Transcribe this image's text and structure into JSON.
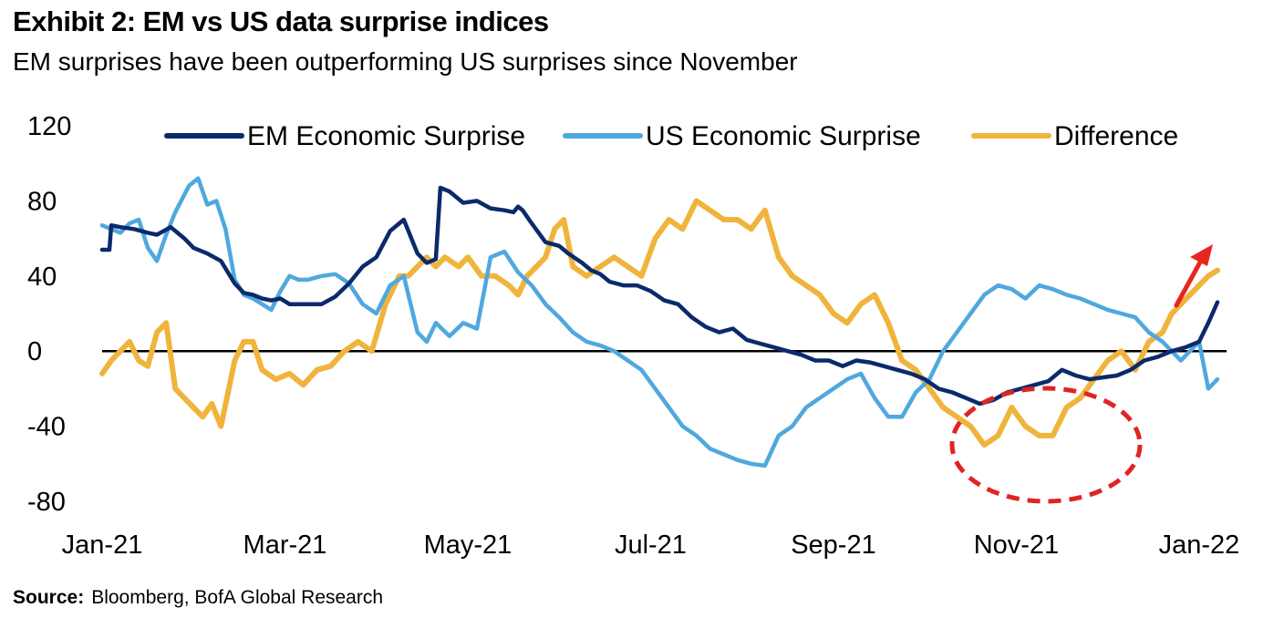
{
  "header": {
    "title": "Exhibit 2: EM vs US data surprise indices",
    "subtitle": "EM surprises have been outperforming US surprises since November"
  },
  "footer": {
    "source_label": "Source:",
    "source_text": "Bloomberg, BofA Global Research"
  },
  "chart_data": {
    "type": "line",
    "title": "Exhibit 2: EM vs US data surprise indices",
    "xlabel": "",
    "ylabel": "",
    "ylim": [
      -80,
      120
    ],
    "xlim": [
      0,
      12.3
    ],
    "yticks": [
      -80,
      -40,
      0,
      40,
      80,
      120
    ],
    "xtick_labels": [
      "Jan-21",
      "Mar-21",
      "May-21",
      "Jul-21",
      "Sep-21",
      "Nov-21",
      "Jan-22"
    ],
    "xtick_positions": [
      0,
      2,
      4,
      6,
      8,
      10,
      12
    ],
    "legend_position": "top",
    "zero_line": true,
    "series": [
      {
        "name": "EM Economic Surprise",
        "color": "#0b2a6b",
        "x": [
          0,
          0.08,
          0.1,
          0.2,
          0.35,
          0.5,
          0.6,
          0.75,
          0.9,
          1.0,
          1.15,
          1.3,
          1.45,
          1.55,
          1.65,
          1.75,
          1.85,
          1.95,
          2.05,
          2.2,
          2.4,
          2.55,
          2.7,
          2.85,
          3.0,
          3.15,
          3.3,
          3.45,
          3.55,
          3.65,
          3.7,
          3.8,
          3.95,
          4.1,
          4.25,
          4.4,
          4.5,
          4.55,
          4.6,
          4.7,
          4.85,
          5.0,
          5.1,
          5.25,
          5.35,
          5.45,
          5.55,
          5.7,
          5.85,
          6.0,
          6.15,
          6.3,
          6.45,
          6.6,
          6.75,
          6.9,
          7.05,
          7.2,
          7.35,
          7.5,
          7.65,
          7.8,
          7.95,
          8.1,
          8.25,
          8.4,
          8.55,
          8.7,
          8.85,
          9.0,
          9.15,
          9.3,
          9.45,
          9.6,
          9.75,
          9.9,
          10.05,
          10.2,
          10.35,
          10.5,
          10.65,
          10.8,
          10.95,
          11.1,
          11.25,
          11.4,
          11.55,
          11.7,
          11.85,
          12.0,
          12.1,
          12.2
        ],
        "values": [
          54,
          54,
          67,
          66,
          65,
          63,
          62,
          66,
          60,
          55,
          52,
          48,
          36,
          31,
          30,
          28,
          27,
          28,
          25,
          25,
          25,
          29,
          36,
          45,
          50,
          64,
          70,
          52,
          47,
          49,
          87,
          85,
          79,
          80,
          76,
          75,
          74,
          77,
          75,
          68,
          58,
          56,
          52,
          47,
          43,
          41,
          37,
          35,
          35,
          32,
          27,
          25,
          18,
          13,
          10,
          12,
          6,
          4,
          2,
          0,
          -2,
          -5,
          -5,
          -8,
          -5,
          -6,
          -8,
          -10,
          -12,
          -15,
          -20,
          -22,
          -25,
          -28,
          -26,
          -22,
          -20,
          -18,
          -16,
          -10,
          -13,
          -15,
          -14,
          -13,
          -10,
          -5,
          -3,
          0,
          2,
          5,
          15,
          26
        ]
      },
      {
        "name": "US Economic Surprise",
        "color": "#4fa8de",
        "x": [
          0,
          0.1,
          0.2,
          0.3,
          0.4,
          0.5,
          0.6,
          0.7,
          0.8,
          0.95,
          1.05,
          1.15,
          1.25,
          1.35,
          1.45,
          1.55,
          1.65,
          1.75,
          1.85,
          1.95,
          2.05,
          2.15,
          2.25,
          2.4,
          2.55,
          2.7,
          2.85,
          3.0,
          3.15,
          3.3,
          3.45,
          3.55,
          3.65,
          3.8,
          3.95,
          4.1,
          4.25,
          4.4,
          4.55,
          4.7,
          4.85,
          5.0,
          5.15,
          5.3,
          5.45,
          5.6,
          5.75,
          5.9,
          6.05,
          6.2,
          6.35,
          6.5,
          6.65,
          6.8,
          6.95,
          7.1,
          7.25,
          7.4,
          7.55,
          7.7,
          7.85,
          8.0,
          8.15,
          8.3,
          8.45,
          8.6,
          8.75,
          8.9,
          9.05,
          9.2,
          9.35,
          9.5,
          9.65,
          9.8,
          9.95,
          10.1,
          10.25,
          10.4,
          10.55,
          10.7,
          10.85,
          11.0,
          11.15,
          11.3,
          11.45,
          11.6,
          11.7,
          11.8,
          11.9,
          12.0,
          12.1,
          12.2
        ],
        "values": [
          67,
          65,
          63,
          68,
          70,
          55,
          48,
          62,
          74,
          88,
          92,
          78,
          80,
          65,
          38,
          30,
          28,
          25,
          22,
          32,
          40,
          38,
          38,
          40,
          41,
          36,
          25,
          20,
          35,
          40,
          10,
          5,
          15,
          8,
          15,
          12,
          50,
          53,
          42,
          35,
          25,
          18,
          10,
          5,
          3,
          0,
          -5,
          -10,
          -20,
          -30,
          -40,
          -45,
          -52,
          -55,
          -58,
          -60,
          -61,
          -45,
          -40,
          -30,
          -25,
          -20,
          -15,
          -12,
          -25,
          -35,
          -35,
          -22,
          -15,
          0,
          10,
          20,
          30,
          35,
          33,
          28,
          35,
          33,
          30,
          28,
          25,
          22,
          20,
          18,
          10,
          5,
          0,
          -5,
          0,
          5,
          -20,
          -15
        ]
      },
      {
        "name": "Difference",
        "color": "#f0b43c",
        "x": [
          0,
          0.1,
          0.2,
          0.3,
          0.4,
          0.5,
          0.6,
          0.7,
          0.8,
          0.9,
          1.0,
          1.1,
          1.2,
          1.3,
          1.45,
          1.55,
          1.65,
          1.75,
          1.9,
          2.05,
          2.2,
          2.35,
          2.5,
          2.65,
          2.8,
          2.95,
          3.1,
          3.25,
          3.35,
          3.45,
          3.55,
          3.65,
          3.75,
          3.9,
          4.0,
          4.15,
          4.3,
          4.45,
          4.55,
          4.65,
          4.75,
          4.85,
          4.95,
          5.05,
          5.15,
          5.3,
          5.45,
          5.6,
          5.75,
          5.9,
          6.05,
          6.2,
          6.35,
          6.5,
          6.65,
          6.8,
          6.95,
          7.1,
          7.25,
          7.4,
          7.55,
          7.7,
          7.85,
          8.0,
          8.15,
          8.3,
          8.45,
          8.6,
          8.75,
          8.9,
          9.05,
          9.2,
          9.35,
          9.5,
          9.65,
          9.8,
          9.95,
          10.1,
          10.25,
          10.4,
          10.55,
          10.7,
          10.85,
          11.0,
          11.15,
          11.3,
          11.45,
          11.6,
          11.7,
          11.8,
          11.9,
          12.0,
          12.1,
          12.2
        ],
        "values": [
          -12,
          -5,
          0,
          5,
          -5,
          -8,
          10,
          15,
          -20,
          -25,
          -30,
          -35,
          -28,
          -40,
          -5,
          5,
          5,
          -10,
          -15,
          -12,
          -18,
          -10,
          -8,
          0,
          5,
          0,
          25,
          40,
          40,
          45,
          50,
          45,
          50,
          45,
          50,
          40,
          40,
          35,
          30,
          40,
          45,
          50,
          65,
          70,
          45,
          40,
          45,
          50,
          45,
          40,
          60,
          70,
          65,
          80,
          75,
          70,
          70,
          65,
          75,
          50,
          40,
          35,
          30,
          20,
          15,
          25,
          30,
          15,
          -5,
          -10,
          -20,
          -30,
          -35,
          -40,
          -50,
          -45,
          -30,
          -40,
          -45,
          -45,
          -30,
          -25,
          -15,
          -5,
          0,
          -10,
          5,
          10,
          20,
          25,
          30,
          35,
          40,
          43
        ]
      }
    ],
    "annotations": [
      "dashed red ellipse highlighting Nov-21 EM outperformance",
      "red upward arrow near Jan-22"
    ]
  }
}
